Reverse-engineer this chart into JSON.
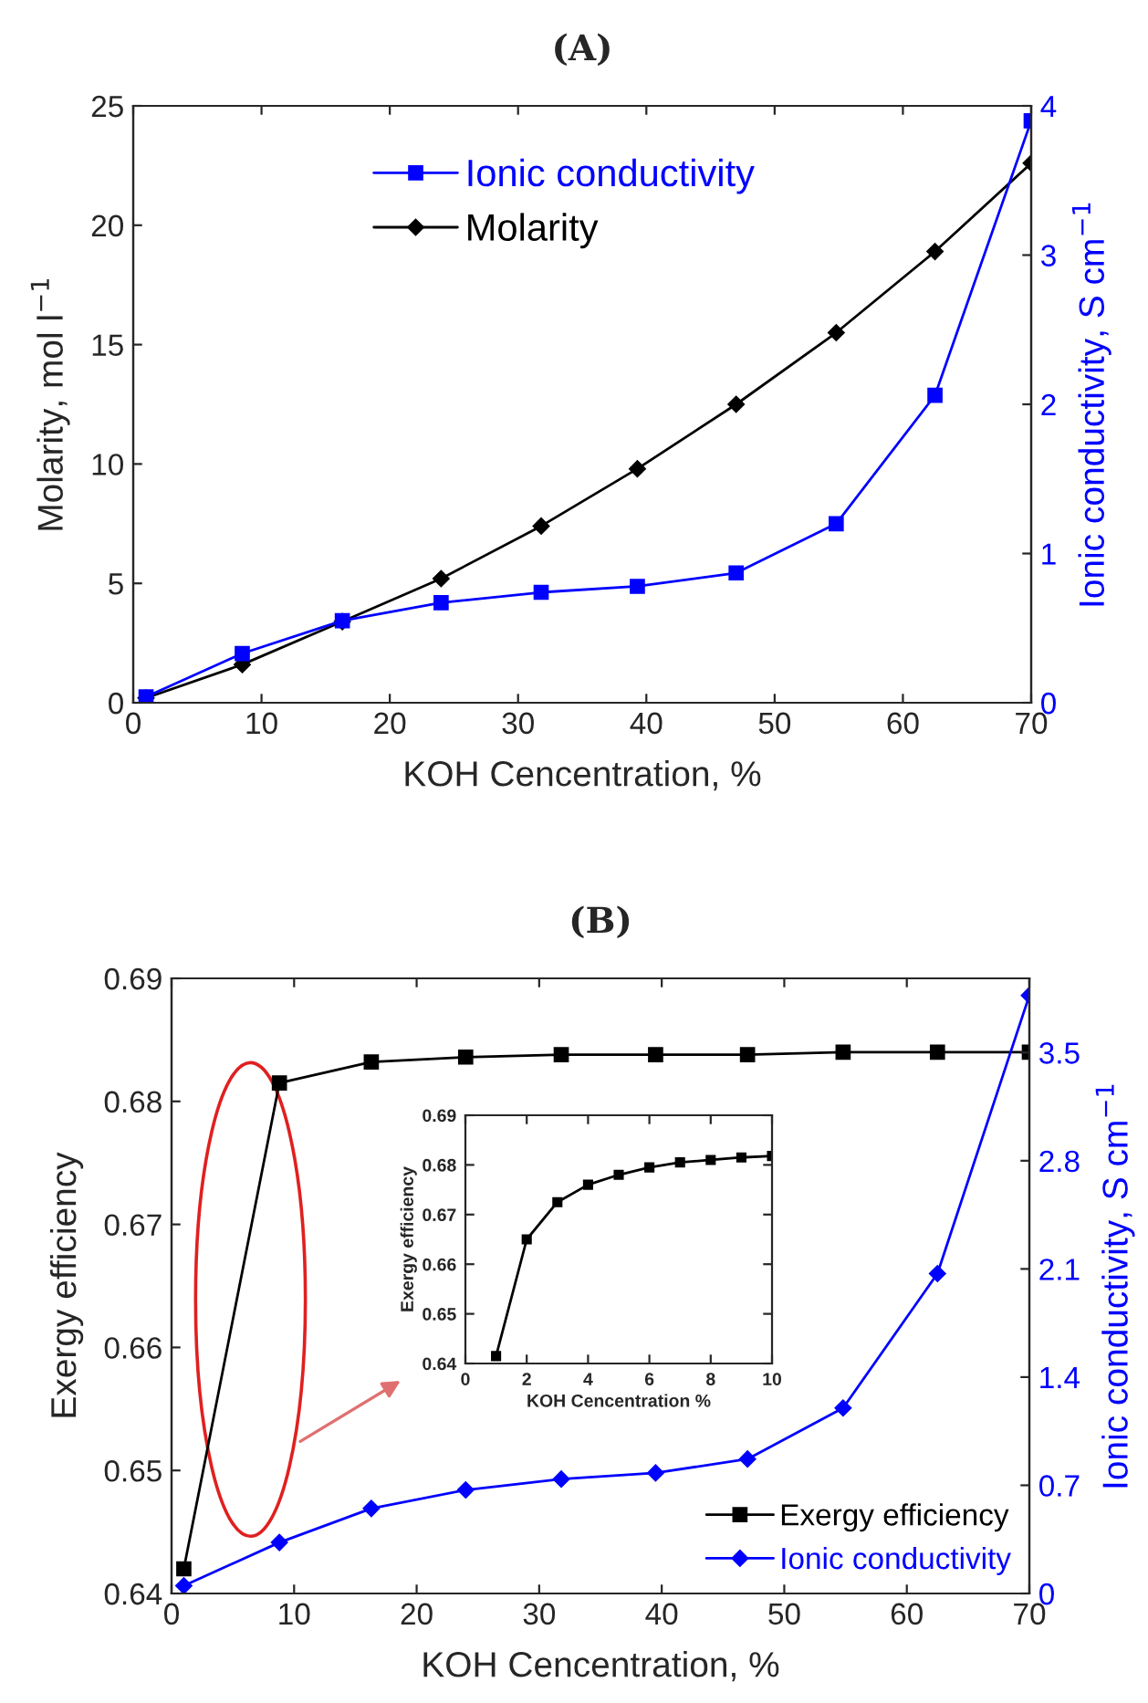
{
  "chart_data": [
    {
      "type": "line",
      "title": "(A)",
      "xlabel": "KOH Cencentration, %",
      "ylabel": "Molarity, mol l$^{−1}$",
      "y2label": "Ionic conductivity, S cm$^{−1}$",
      "x": [
        1,
        8.5,
        16.3,
        24,
        31.8,
        39.3,
        47,
        54.8,
        62.5,
        70
      ],
      "series": [
        {
          "name": "Ionic conductivity",
          "color": "#0000ff",
          "axis": "y2",
          "marker": "square",
          "values": [
            0.04,
            0.33,
            0.55,
            0.67,
            0.74,
            0.78,
            0.87,
            1.2,
            2.06,
            3.9
          ]
        },
        {
          "name": "Molarity",
          "color": "#000000",
          "marker": "diamond",
          "values": [
            0.2,
            1.6,
            3.4,
            5.2,
            7.4,
            9.8,
            12.5,
            15.5,
            18.9,
            22.6
          ]
        }
      ],
      "xlim": [
        0,
        70
      ],
      "xticks": [
        0,
        10,
        20,
        30,
        40,
        50,
        60,
        70
      ],
      "ylim": [
        0,
        25
      ],
      "yticks": [
        0,
        5,
        10,
        15,
        20,
        25
      ],
      "y2lim": [
        0,
        4
      ],
      "y2ticks": [
        0,
        1,
        2,
        3,
        4
      ],
      "grid": false,
      "legend": "top",
      "line_style": "solid"
    },
    {
      "type": "line",
      "title": "(B)",
      "xlabel": "KOH Cencentration, %",
      "ylabel": "Exergy efficiency",
      "y2label": "Ionic conductivity, S cm$^{−1}$",
      "x": [
        1,
        8.8,
        16.3,
        24,
        31.8,
        39.5,
        47,
        54.8,
        62.5,
        70
      ],
      "series": [
        {
          "name": "Exergy efficiency",
          "color": "#000000",
          "marker": "square",
          "values": [
            0.642,
            0.6815,
            0.6832,
            0.6836,
            0.6838,
            0.6838,
            0.6838,
            0.684,
            0.684,
            0.684
          ]
        },
        {
          "name": "Ionic conductivity",
          "color": "#0000ff",
          "axis": "y2",
          "marker": "diamond",
          "values": [
            0.05,
            0.33,
            0.55,
            0.67,
            0.74,
            0.78,
            0.87,
            1.2,
            2.07,
            3.87
          ]
        }
      ],
      "xlim": [
        0,
        70
      ],
      "xticks": [
        0,
        10,
        20,
        30,
        40,
        50,
        60,
        70
      ],
      "ylim": [
        0.64,
        0.69
      ],
      "yticks": [
        0.64,
        0.65,
        0.66,
        0.67,
        0.68,
        0.69
      ],
      "y2lim": [
        0,
        3.98
      ],
      "y2ticks": [
        0,
        0.7,
        1.4,
        2.1,
        2.8,
        3.5
      ],
      "grid": false,
      "legend": "bottom right",
      "line_style": "solid"
    },
    {
      "type": "line",
      "xlabel": "KOH Cencentration %",
      "ylabel": "Exergy efficiency",
      "x": [
        1,
        2,
        3,
        4,
        5,
        6,
        7,
        8,
        9,
        10
      ],
      "series": [
        {
          "color": "#000000",
          "marker": "square",
          "values": [
            0.6415,
            0.665,
            0.6725,
            0.676,
            0.678,
            0.6795,
            0.6805,
            0.681,
            0.6815,
            0.6818
          ]
        }
      ],
      "xlim": [
        0,
        10
      ],
      "xticks": [
        0,
        2,
        4,
        6,
        8,
        10
      ],
      "ylim": [
        0.64,
        0.69
      ],
      "yticks": [
        0.64,
        0.65,
        0.66,
        0.67,
        0.68,
        0.69
      ],
      "grid": false,
      "line_style": "solid"
    }
  ]
}
